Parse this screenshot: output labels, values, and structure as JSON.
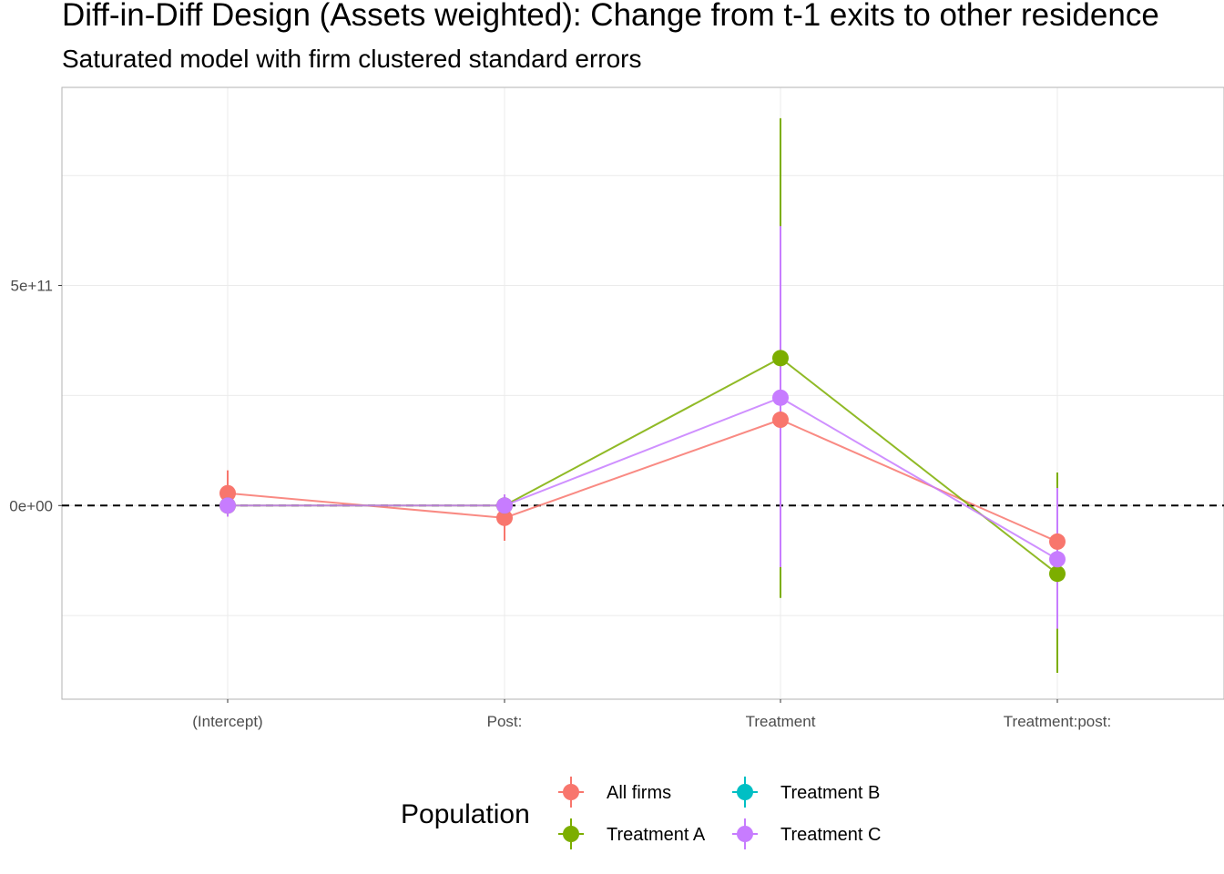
{
  "chart_data": {
    "type": "line",
    "title": "Diff-in-Diff Design (Assets weighted): Change from t-1 exits to other residence",
    "subtitle": "Saturated model with firm clustered standard errors",
    "xlabel": "",
    "ylabel": "",
    "categories": [
      "(Intercept)",
      "Post:",
      "Treatment",
      "Treatment:post:"
    ],
    "y_ticks": [
      {
        "value": 0,
        "label": "0e+00"
      },
      {
        "value": 500000000000,
        "label": "5e+11"
      }
    ],
    "ylim": [
      -440000000000,
      950000000000
    ],
    "grid": true,
    "reference_line": {
      "value": 0,
      "style": "dashed"
    },
    "legend": {
      "title": "Population",
      "position": "bottom"
    },
    "series": [
      {
        "name": "All firms",
        "color": "#F8766D",
        "values": [
          28000000000,
          -28000000000,
          195000000000,
          -82000000000
        ],
        "lower": [
          -25000000000,
          -80000000000,
          195000000000,
          -82000000000
        ],
        "upper": [
          80000000000,
          25000000000,
          195000000000,
          -82000000000
        ]
      },
      {
        "name": "Treatment A",
        "color": "#7CAE00",
        "values": [
          0,
          0,
          335000000000,
          -155000000000
        ],
        "lower": [
          0,
          0,
          -210000000000,
          -380000000000
        ],
        "upper": [
          0,
          0,
          880000000000,
          75000000000
        ]
      },
      {
        "name": "Treatment B",
        "color": "#00BFC4",
        "values": [
          0,
          0,
          0,
          0
        ],
        "lower": [
          0,
          0,
          0,
          0
        ],
        "upper": [
          0,
          0,
          0,
          0
        ]
      },
      {
        "name": "Treatment C",
        "color": "#C77CFF",
        "values": [
          0,
          0,
          245000000000,
          -122000000000
        ],
        "lower": [
          -25000000000,
          -25000000000,
          -140000000000,
          -280000000000
        ],
        "upper": [
          25000000000,
          25000000000,
          635000000000,
          40000000000
        ]
      }
    ],
    "plotted_series": [
      "All firms",
      "Treatment A",
      "Treatment C"
    ]
  }
}
